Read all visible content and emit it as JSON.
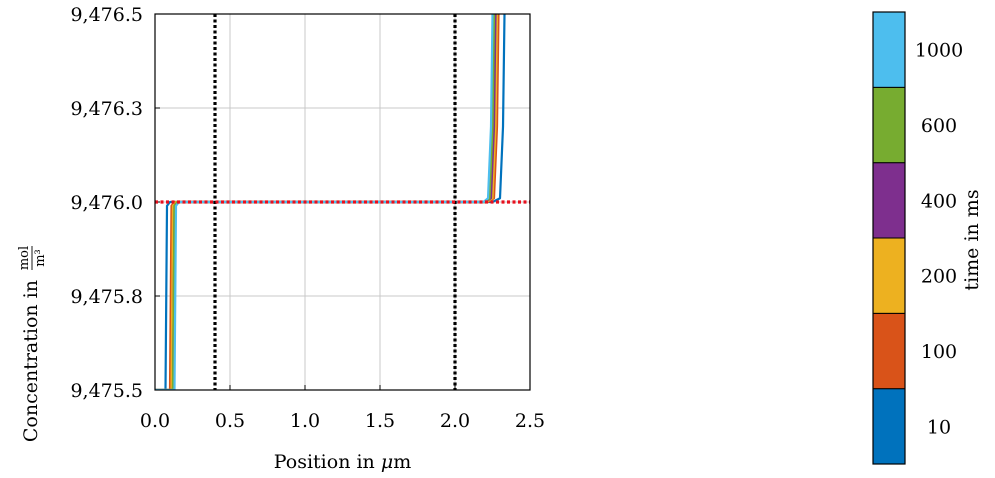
{
  "chart_data": {
    "type": "line",
    "title": "",
    "xlabel": "Position in μm",
    "ylabel_prefix": "Concentration in",
    "ylabel_unit_num": "mol",
    "ylabel_unit_den": "m³",
    "xlim": [
      0,
      2.5
    ],
    "ylim": [
      9475.5,
      9476.5
    ],
    "xticks": [
      "0.0",
      "0.5",
      "1.0",
      "1.5",
      "2.0",
      "2.5"
    ],
    "xtick_values": [
      0,
      0.5,
      1.0,
      1.5,
      2.0,
      2.5
    ],
    "yticks": [
      "9,475.5",
      "9,475.8",
      "9,476.0",
      "9,476.3",
      "9,476.5"
    ],
    "ytick_values": [
      9475.5,
      9475.75,
      9476.0,
      9476.25,
      9476.5
    ],
    "grid": true,
    "reference_lines": {
      "vertical_x": [
        0.4,
        2.0
      ],
      "vertical_color": "#000000",
      "horizontal_y": 9476.0,
      "horizontal_color": "#e8101e"
    },
    "series": [
      {
        "time": "10",
        "color": "#0072BD",
        "x": [
          0.0,
          0.07,
          0.08,
          0.1,
          0.5,
          1.0,
          1.5,
          2.0,
          2.25,
          2.3,
          2.32,
          2.33
        ],
        "y": [
          9475.5,
          9475.5,
          9475.99,
          9476.0,
          9476.0,
          9476.0,
          9476.0,
          9476.0,
          9476.0,
          9476.01,
          9476.2,
          9476.5
        ]
      },
      {
        "time": "100",
        "color": "#D95319",
        "x": [
          0.0,
          0.1,
          0.11,
          0.13,
          0.5,
          1.0,
          1.5,
          2.0,
          2.22,
          2.26,
          2.28,
          2.29
        ],
        "y": [
          9475.5,
          9475.5,
          9475.99,
          9476.0,
          9476.0,
          9476.0,
          9476.0,
          9476.0,
          9476.0,
          9476.01,
          9476.2,
          9476.5
        ]
      },
      {
        "time": "200",
        "color": "#EDB120",
        "x": [
          0.0,
          0.11,
          0.12,
          0.14,
          0.5,
          1.0,
          1.5,
          2.0,
          2.21,
          2.25,
          2.27,
          2.28
        ],
        "y": [
          9475.5,
          9475.5,
          9475.99,
          9476.0,
          9476.0,
          9476.0,
          9476.0,
          9476.0,
          9476.0,
          9476.01,
          9476.2,
          9476.5
        ]
      },
      {
        "time": "400",
        "color": "#7E2F8E",
        "x": [
          0.0,
          0.12,
          0.13,
          0.15,
          0.5,
          1.0,
          1.5,
          2.0,
          2.2,
          2.24,
          2.26,
          2.27
        ],
        "y": [
          9475.5,
          9475.5,
          9475.99,
          9476.0,
          9476.0,
          9476.0,
          9476.0,
          9476.0,
          9476.0,
          9476.01,
          9476.2,
          9476.5
        ]
      },
      {
        "time": "600",
        "color": "#77AC30",
        "x": [
          0.0,
          0.12,
          0.13,
          0.15,
          0.5,
          1.0,
          1.5,
          2.0,
          2.2,
          2.23,
          2.25,
          2.26
        ],
        "y": [
          9475.5,
          9475.5,
          9475.99,
          9476.0,
          9476.0,
          9476.0,
          9476.0,
          9476.0,
          9476.0,
          9476.01,
          9476.2,
          9476.5
        ]
      },
      {
        "time": "1000",
        "color": "#4DBEEE",
        "x": [
          0.0,
          0.13,
          0.14,
          0.16,
          0.5,
          1.0,
          1.5,
          2.0,
          2.19,
          2.22,
          2.24,
          2.25
        ],
        "y": [
          9475.5,
          9475.5,
          9475.99,
          9476.0,
          9476.0,
          9476.0,
          9476.0,
          9476.0,
          9476.0,
          9476.01,
          9476.2,
          9476.5
        ]
      }
    ],
    "colorbar": {
      "label": "time in ms",
      "entries": [
        {
          "label": "10",
          "color": "#0072BD"
        },
        {
          "label": "100",
          "color": "#D95319"
        },
        {
          "label": "200",
          "color": "#EDB120"
        },
        {
          "label": "400",
          "color": "#7E2F8E"
        },
        {
          "label": "600",
          "color": "#77AC30"
        },
        {
          "label": "1000",
          "color": "#4DBEEE"
        }
      ]
    }
  }
}
